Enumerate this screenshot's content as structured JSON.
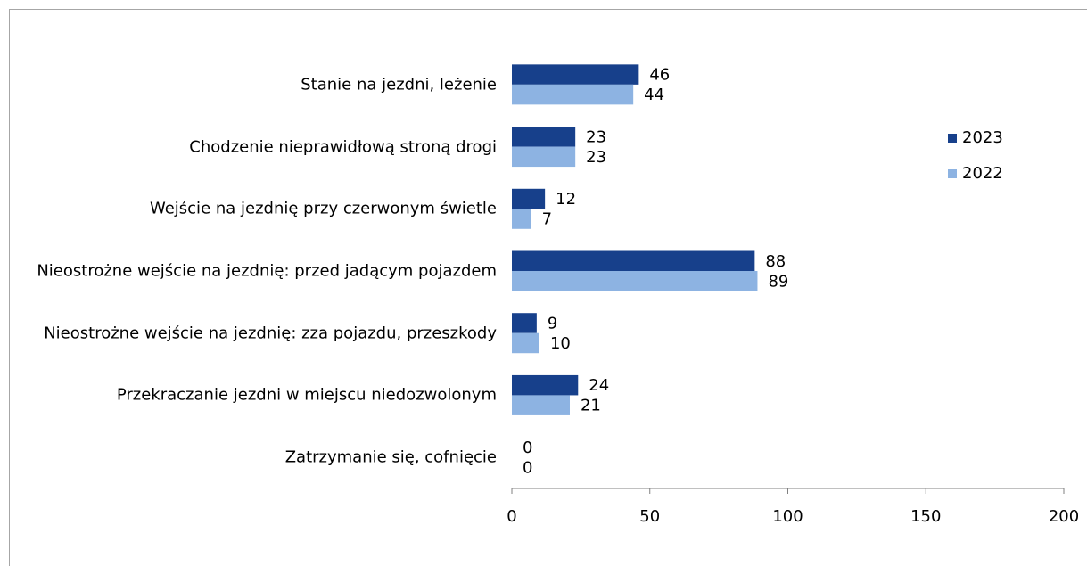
{
  "chart_data": {
    "type": "barh",
    "categories": [
      "Stanie na jezdni, leżenie",
      "Chodzenie nieprawidłową stroną drogi",
      "Wejście na jezdnię przy czerwonym świetle",
      "Nieostrożne wejście na jezdnię: przed jadącym pojazdem",
      "Nieostrożne wejście na jezdnię: zza pojazdu, przeszkody",
      "Przekraczanie jezdni w miejscu niedozwolonym",
      "Zatrzymanie się, cofnięcie"
    ],
    "series": [
      {
        "name": "2023",
        "color": "#17408b",
        "values": [
          46,
          23,
          12,
          88,
          9,
          24,
          0
        ]
      },
      {
        "name": "2022",
        "color": "#8db3e2",
        "values": [
          44,
          23,
          7,
          89,
          10,
          21,
          0
        ]
      }
    ],
    "xlim": [
      0,
      200
    ],
    "xticks": [
      0,
      50,
      100,
      150,
      200
    ],
    "grid": false,
    "legend": "right"
  }
}
